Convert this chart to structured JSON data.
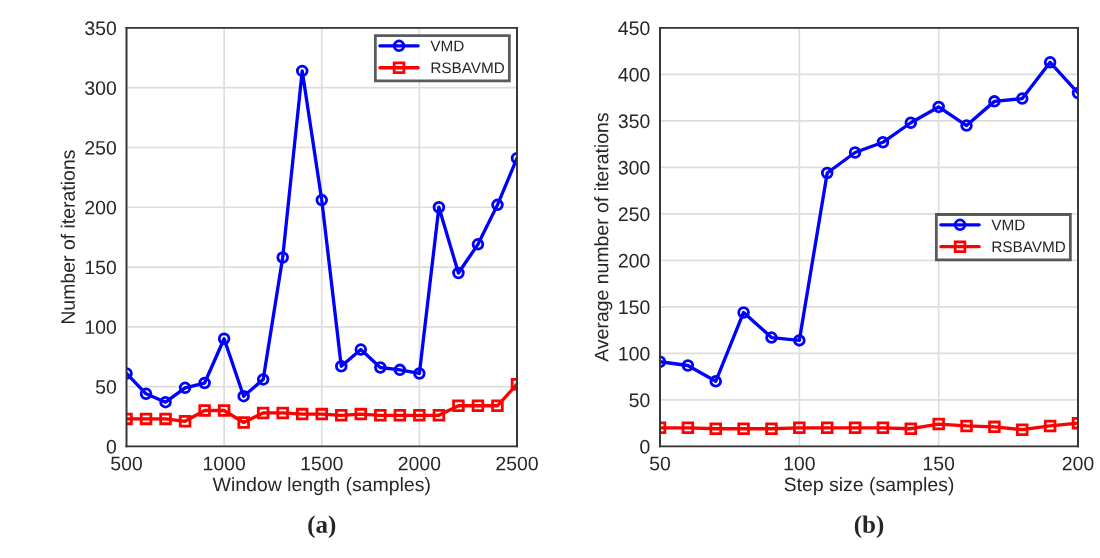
{
  "chart_data": [
    {
      "type": "line",
      "xlabel": "Window length (samples)",
      "ylabel": "Number of iterations",
      "annotations": [
        "(a)"
      ],
      "x": [
        500,
        600,
        700,
        800,
        900,
        1000,
        1100,
        1200,
        1300,
        1400,
        1500,
        1600,
        1700,
        1800,
        1900,
        2000,
        2100,
        2200,
        2300,
        2400,
        2500
      ],
      "series": [
        {
          "name": "VMD",
          "color": "#0000ff",
          "marker": "circle",
          "values": [
            61,
            44,
            37,
            49,
            53,
            90,
            42,
            56,
            158,
            314,
            206,
            67,
            81,
            66,
            64,
            61,
            200,
            145,
            169,
            202,
            241
          ]
        },
        {
          "name": "RSBAVMD",
          "color": "#ff0000",
          "marker": "square",
          "values": [
            23,
            23,
            23,
            21,
            30,
            30,
            20,
            28,
            28,
            27,
            27,
            26,
            27,
            26,
            26,
            26,
            26,
            34,
            34,
            34,
            52
          ]
        }
      ],
      "xlim": [
        500,
        2500
      ],
      "xticks": [
        500,
        1000,
        1500,
        2000,
        2500
      ],
      "ylim": [
        0,
        350
      ],
      "yticks": [
        0,
        50,
        100,
        150,
        200,
        250,
        300,
        350
      ],
      "grid": true,
      "legend": "top right",
      "line_style": "solid"
    },
    {
      "type": "line",
      "xlabel": "Step size (samples)",
      "ylabel": "Average number of iterations",
      "annotations": [
        "(b)"
      ],
      "x": [
        50,
        60,
        70,
        80,
        90,
        100,
        110,
        120,
        130,
        140,
        150,
        160,
        170,
        180,
        190,
        200
      ],
      "series": [
        {
          "name": "VMD",
          "color": "#0000ff",
          "marker": "circle",
          "values": [
            91,
            87,
            70,
            144,
            117,
            114,
            294,
            316,
            327,
            348,
            365,
            345,
            371,
            374,
            413,
            380
          ]
        },
        {
          "name": "RSBAVMD",
          "color": "#ff0000",
          "marker": "square",
          "values": [
            20,
            20,
            19,
            19,
            19,
            20,
            20,
            20,
            20,
            19,
            24,
            22,
            21,
            18,
            22,
            25
          ]
        }
      ],
      "xlim": [
        50,
        200
      ],
      "xticks": [
        50,
        100,
        150,
        200
      ],
      "ylim": [
        0,
        450
      ],
      "yticks": [
        0,
        50,
        100,
        150,
        200,
        250,
        300,
        350,
        400,
        450
      ],
      "grid": true,
      "legend": "right",
      "line_style": "solid"
    }
  ]
}
